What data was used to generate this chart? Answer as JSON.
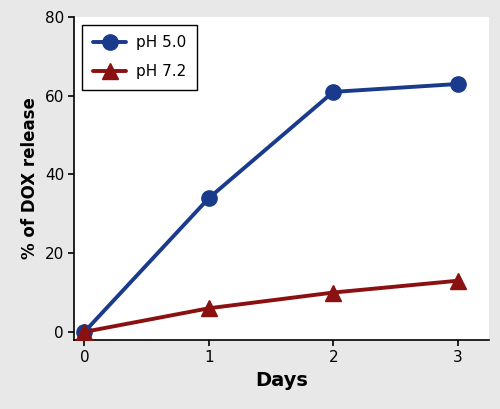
{
  "days": [
    0,
    1,
    2,
    3
  ],
  "ph50_values": [
    0,
    34,
    61,
    63
  ],
  "ph72_values": [
    0,
    6,
    10,
    13
  ],
  "ph50_color": "#1a3a8c",
  "ph72_color": "#8b1010",
  "ph50_label": "pH 5.0",
  "ph72_label": "pH 7.2",
  "xlabel": "Days",
  "ylabel": "% of DOX release",
  "xlim": [
    -0.08,
    3.25
  ],
  "ylim": [
    -2,
    80
  ],
  "yticks": [
    0,
    20,
    40,
    60,
    80
  ],
  "xticks": [
    0,
    1,
    2,
    3
  ],
  "line_width": 2.8,
  "marker_size": 11,
  "xlabel_fontsize": 14,
  "ylabel_fontsize": 12,
  "tick_fontsize": 11,
  "legend_fontsize": 11,
  "outer_bg": "#e8e8e8",
  "inner_bg": "#ffffff"
}
